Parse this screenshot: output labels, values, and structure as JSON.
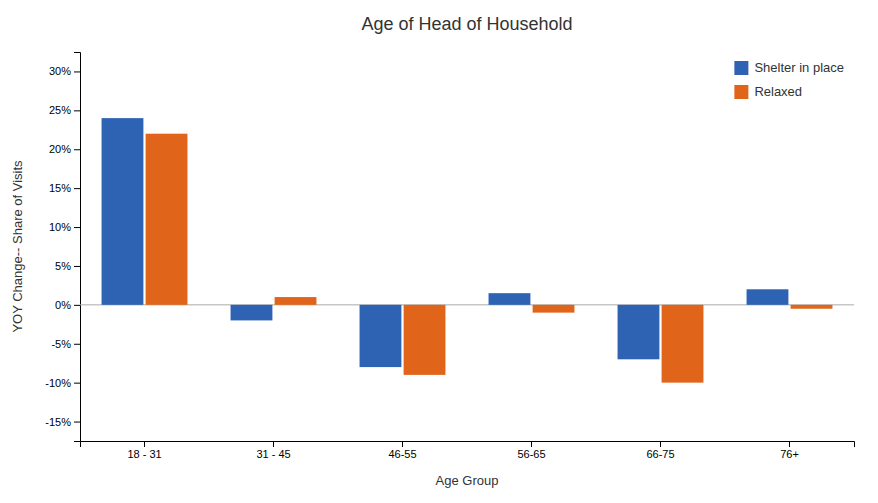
{
  "chart_data": {
    "type": "bar",
    "title": "Age of Head of Household",
    "xlabel": "Age Group",
    "ylabel": "YOY Change--  Share of Visits",
    "categories": [
      "18 - 31",
      "31 - 45",
      "46-55",
      "56-65",
      "66-75",
      "76+"
    ],
    "series": [
      {
        "name": "Shelter in place",
        "color": "#2E62B3",
        "values": [
          0.24,
          -0.02,
          -0.08,
          0.015,
          -0.07,
          0.02
        ]
      },
      {
        "name": "Relaxed",
        "color": "#E0641A",
        "values": [
          0.22,
          0.01,
          -0.09,
          -0.01,
          -0.1,
          -0.005
        ]
      }
    ],
    "ylim": [
      -0.175,
      0.325
    ],
    "yticks": [
      {
        "value": -0.15,
        "label": "-15%"
      },
      {
        "value": -0.1,
        "label": "-10%"
      },
      {
        "value": -0.05,
        "label": "-5%"
      },
      {
        "value": 0.0,
        "label": "0%"
      },
      {
        "value": 0.05,
        "label": "5%"
      },
      {
        "value": 0.1,
        "label": "10%"
      },
      {
        "value": 0.15,
        "label": "15%"
      },
      {
        "value": 0.2,
        "label": "20%"
      },
      {
        "value": 0.25,
        "label": "25%"
      },
      {
        "value": 0.3,
        "label": "30%"
      }
    ],
    "grid": false,
    "legend": "upper right"
  }
}
